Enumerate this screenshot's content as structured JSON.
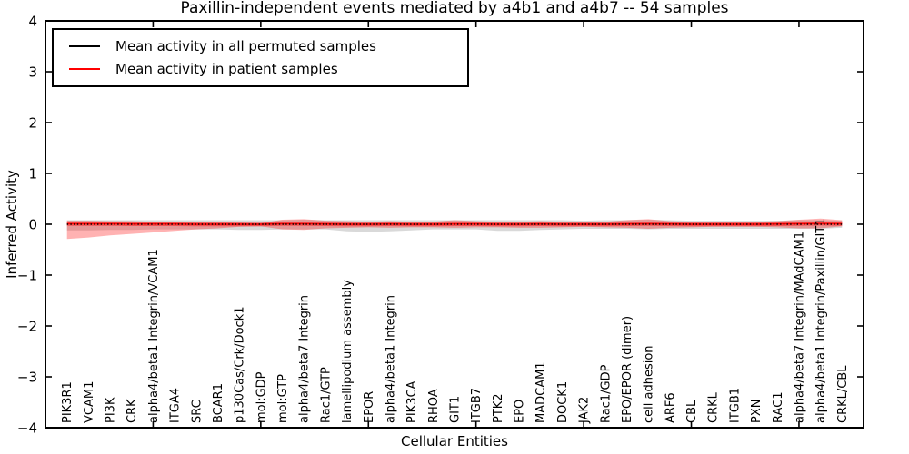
{
  "figure": {
    "title": "Paxillin-independent events mediated by a4b1 and a4b7 -- 54 samples",
    "xlabel": "Cellular Entities",
    "ylabel": "Inferred Activity"
  },
  "legend": {
    "items": [
      {
        "label": "Mean activity in all permuted samples",
        "color": "#000000"
      },
      {
        "label": "Mean activity in patient samples",
        "color": "#ff0000"
      }
    ]
  },
  "chart_data": {
    "type": "area",
    "title": "Paxillin-independent events mediated by a4b1 and a4b7 -- 54 samples",
    "xlabel": "Cellular Entities",
    "ylabel": "Inferred Activity",
    "xlim": [
      0,
      38
    ],
    "ylim": [
      -4,
      4
    ],
    "yticks": [
      -4,
      -3,
      -2,
      -1,
      0,
      1,
      2,
      3,
      4
    ],
    "ytick_labels": [
      "−4",
      "−3",
      "−2",
      "−1",
      "0",
      "1",
      "2",
      "3",
      "4"
    ],
    "xticks_major": [
      5,
      10,
      15,
      20,
      25,
      30,
      35
    ],
    "grid": false,
    "legend_position": "upper left",
    "background": "#ffffff",
    "axis_color": "#000000",
    "categories": [
      "PIK3R1",
      "VCAM1",
      "PI3K",
      "CRK",
      "alpha4/beta1 Integrin/VCAM1",
      "ITGA4",
      "SRC",
      "BCAR1",
      "p130Cas/Crk/Dock1",
      "mol:GDP",
      "mol:GTP",
      "alpha4/beta7 Integrin",
      "Rac1/GTP",
      "lamellipodium assembly",
      "EPOR",
      "alpha4/beta1 Integrin",
      "PIK3CA",
      "RHOA",
      "GIT1",
      "ITGB7",
      "PTK2",
      "EPO",
      "MADCAM1",
      "DOCK1",
      "JAK2",
      "Rac1/GDP",
      "EPO/EPOR (dimer)",
      "cell adhesion",
      "ARF6",
      "CBL",
      "CRKL",
      "ITGB1",
      "PXN",
      "RAC1",
      "alpha4/beta7 Integrin/MAdCAM1",
      "alpha4/beta1 Integrin/Paxillin/GIT1",
      "CRKL/CBL"
    ],
    "series": [
      {
        "id": "permuted-range",
        "name": "Permuted samples activity range",
        "type": "band",
        "color": "#aaaaaa",
        "opacity": 0.45,
        "upper": [
          0.08,
          0.08,
          0.08,
          0.08,
          0.08,
          0.08,
          0.08,
          0.08,
          0.08,
          0.08,
          0.08,
          0.09,
          0.08,
          0.08,
          0.08,
          0.08,
          0.08,
          0.08,
          0.08,
          0.08,
          0.08,
          0.08,
          0.08,
          0.08,
          0.07,
          0.08,
          0.08,
          0.09,
          0.08,
          0.07,
          0.07,
          0.07,
          0.07,
          0.07,
          0.08,
          0.08,
          0.07
        ],
        "lower": [
          -0.12,
          -0.12,
          -0.11,
          -0.11,
          -0.1,
          -0.1,
          -0.1,
          -0.1,
          -0.11,
          -0.11,
          -0.1,
          -0.1,
          -0.1,
          -0.14,
          -0.15,
          -0.14,
          -0.12,
          -0.1,
          -0.1,
          -0.1,
          -0.13,
          -0.13,
          -0.11,
          -0.1,
          -0.09,
          -0.09,
          -0.09,
          -0.1,
          -0.09,
          -0.09,
          -0.09,
          -0.09,
          -0.09,
          -0.09,
          -0.09,
          -0.09,
          -0.07
        ]
      },
      {
        "id": "patient-range",
        "name": "Patient samples activity range",
        "type": "band",
        "color": "#ff0000",
        "opacity": 0.3,
        "core_upper_offset": 0.03,
        "core_lower_offset": 0.04,
        "core_opacity": 0.45,
        "upper": [
          0.07,
          0.07,
          0.06,
          0.06,
          0.05,
          0.05,
          0.05,
          0.04,
          0.03,
          0.02,
          0.09,
          0.1,
          0.07,
          0.06,
          0.05,
          0.06,
          0.05,
          0.05,
          0.08,
          0.06,
          0.05,
          0.05,
          0.06,
          0.05,
          0.04,
          0.05,
          0.08,
          0.1,
          0.06,
          0.05,
          0.05,
          0.05,
          0.05,
          0.06,
          0.09,
          0.11,
          0.08
        ],
        "lower": [
          -0.29,
          -0.26,
          -0.22,
          -0.19,
          -0.16,
          -0.13,
          -0.1,
          -0.08,
          -0.05,
          -0.04,
          -0.1,
          -0.11,
          -0.08,
          -0.07,
          -0.06,
          -0.07,
          -0.06,
          -0.06,
          -0.07,
          -0.06,
          -0.06,
          -0.07,
          -0.07,
          -0.06,
          -0.05,
          -0.06,
          -0.07,
          -0.09,
          -0.07,
          -0.06,
          -0.05,
          -0.05,
          -0.05,
          -0.06,
          -0.08,
          -0.08,
          -0.04
        ]
      },
      {
        "id": "patient-mean",
        "name": "Mean activity in patient samples",
        "type": "line",
        "style": "solid",
        "color": "#ff0000",
        "values": [
          0.01,
          0.01,
          0.01,
          0.005,
          0.005,
          0.005,
          0,
          0,
          0,
          0,
          0.01,
          0.01,
          0.005,
          0,
          0,
          0.005,
          0,
          0,
          0.005,
          0.005,
          0,
          0,
          0.005,
          0,
          0,
          0,
          0.005,
          0.01,
          0.005,
          0,
          0,
          0,
          0,
          0.005,
          0.01,
          0.015,
          0.01
        ]
      },
      {
        "id": "permuted-mean",
        "name": "Mean activity in all permuted samples",
        "type": "line",
        "style": "dotted",
        "color": "#000000",
        "values": [
          0,
          0,
          0,
          0,
          0,
          0,
          0,
          0,
          0,
          0,
          0,
          0,
          0,
          0,
          0,
          0,
          0,
          0,
          0,
          0,
          0,
          0,
          0,
          0,
          0,
          0,
          0,
          0,
          0,
          0,
          0,
          0,
          0,
          0,
          0,
          0,
          0
        ]
      }
    ]
  }
}
